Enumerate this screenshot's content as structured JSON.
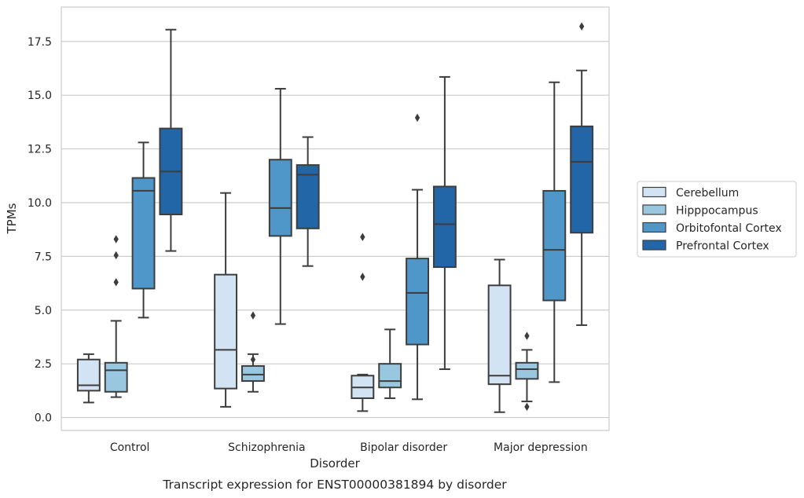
{
  "chart_data": {
    "type": "box",
    "caption": "Transcript expression for ENST00000381894 by disorder",
    "xlabel": "Disorder",
    "ylabel": "TPMs",
    "ylim": [
      -0.6,
      19.1
    ],
    "yticks": [
      0.0,
      2.5,
      5.0,
      7.5,
      10.0,
      12.5,
      15.0,
      17.5
    ],
    "ytick_labels": [
      "0.0",
      "2.5",
      "5.0",
      "7.5",
      "10.0",
      "12.5",
      "15.0",
      "17.5"
    ],
    "grid": "horizontal",
    "legend_position": "right",
    "categories": [
      "Control",
      "Schizophrenia",
      "Bipolar disorder",
      "Major depression"
    ],
    "series": [
      {
        "name": "Cerebellum",
        "color": "#d2e3f3",
        "boxes": [
          {
            "whislo": 0.7,
            "q1": 1.25,
            "med": 1.5,
            "q3": 2.7,
            "whishi": 2.95,
            "fliers": []
          },
          {
            "whislo": 0.5,
            "q1": 1.35,
            "med": 3.15,
            "q3": 6.65,
            "whishi": 10.45,
            "fliers": []
          },
          {
            "whislo": 0.3,
            "q1": 0.9,
            "med": 1.4,
            "q3": 1.95,
            "whishi": 2.0,
            "fliers": [
              6.55,
              8.4
            ]
          },
          {
            "whislo": 0.25,
            "q1": 1.55,
            "med": 1.95,
            "q3": 6.15,
            "whishi": 7.35,
            "fliers": []
          }
        ]
      },
      {
        "name": "Hipppocampus",
        "color": "#9ac7e0",
        "boxes": [
          {
            "whislo": 0.95,
            "q1": 1.2,
            "med": 2.2,
            "q3": 2.55,
            "whishi": 4.5,
            "fliers": [
              6.3,
              7.55,
              8.3
            ]
          },
          {
            "whislo": 1.2,
            "q1": 1.7,
            "med": 2.0,
            "q3": 2.4,
            "whishi": 2.95,
            "fliers": [
              2.7,
              4.75
            ]
          },
          {
            "whislo": 0.9,
            "q1": 1.4,
            "med": 1.7,
            "q3": 2.5,
            "whishi": 4.1,
            "fliers": []
          },
          {
            "whislo": 0.75,
            "q1": 1.8,
            "med": 2.25,
            "q3": 2.55,
            "whishi": 3.15,
            "fliers": [
              0.5,
              3.8
            ]
          }
        ]
      },
      {
        "name": "Orbitofontal Cortex",
        "color": "#5097c9",
        "boxes": [
          {
            "whislo": 4.65,
            "q1": 6.0,
            "med": 10.55,
            "q3": 11.15,
            "whishi": 12.8,
            "fliers": []
          },
          {
            "whislo": 4.35,
            "q1": 8.45,
            "med": 9.75,
            "q3": 12.0,
            "whishi": 15.3,
            "fliers": []
          },
          {
            "whislo": 0.85,
            "q1": 3.4,
            "med": 5.8,
            "q3": 7.4,
            "whishi": 10.6,
            "fliers": [
              13.95
            ]
          },
          {
            "whislo": 1.65,
            "q1": 5.45,
            "med": 7.8,
            "q3": 10.55,
            "whishi": 15.6,
            "fliers": []
          }
        ]
      },
      {
        "name": "Prefrontal Cortex",
        "color": "#2266a8",
        "boxes": [
          {
            "whislo": 7.75,
            "q1": 9.45,
            "med": 11.45,
            "q3": 13.45,
            "whishi": 18.05,
            "fliers": []
          },
          {
            "whislo": 7.05,
            "q1": 8.8,
            "med": 11.3,
            "q3": 11.75,
            "whishi": 13.05,
            "fliers": []
          },
          {
            "whislo": 2.25,
            "q1": 7.0,
            "med": 9.0,
            "q3": 10.75,
            "whishi": 15.85,
            "fliers": []
          },
          {
            "whislo": 4.3,
            "q1": 8.6,
            "med": 11.9,
            "q3": 13.55,
            "whishi": 16.15,
            "fliers": [
              18.2
            ]
          }
        ]
      }
    ]
  }
}
